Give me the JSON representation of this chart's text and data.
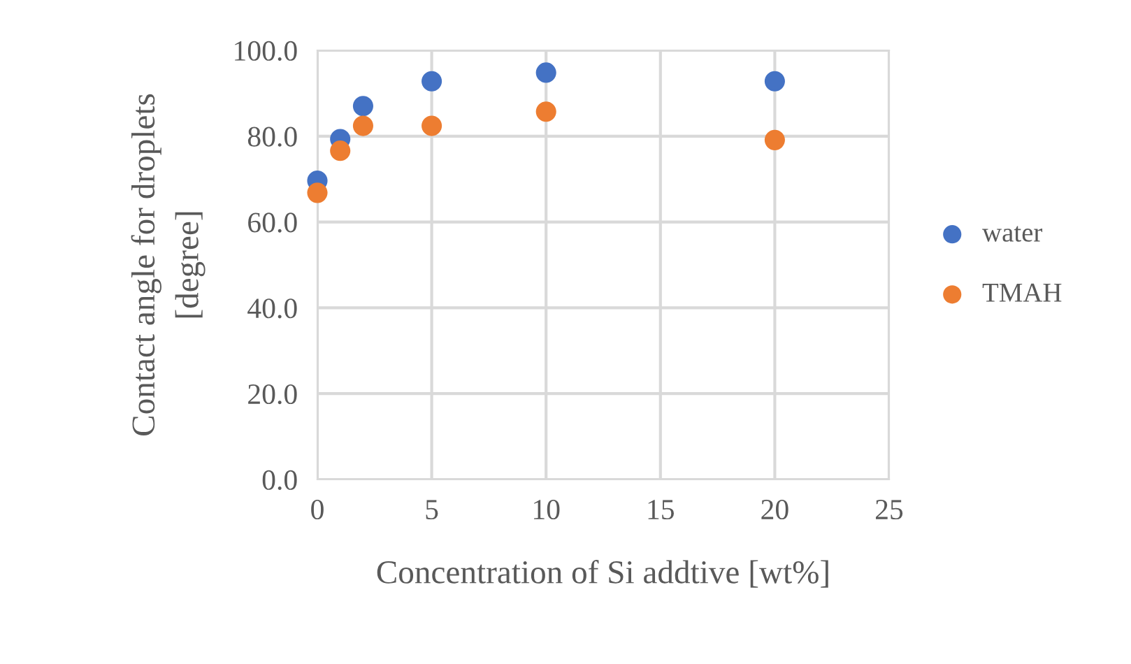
{
  "chart_data": {
    "type": "scatter",
    "xlabel": "Concentration of Si addtive [wt%]",
    "ylabel": "Contact angle for droplets\n[degree]",
    "x": [
      0,
      1,
      2,
      5,
      10,
      20
    ],
    "series": [
      {
        "name": "water",
        "color": "#4472c4",
        "values": [
          69.6,
          79.3,
          87.0,
          92.8,
          94.8,
          92.8
        ]
      },
      {
        "name": "TMAH",
        "color": "#ed7d31",
        "values": [
          66.8,
          76.6,
          82.4,
          82.4,
          85.7,
          79.1
        ]
      }
    ],
    "xlim": [
      0,
      25
    ],
    "xticks": [
      0,
      5,
      10,
      15,
      20,
      25
    ],
    "ylim": [
      0,
      100
    ],
    "yticks": [
      {
        "value": 0,
        "label": "0.0"
      },
      {
        "value": 20,
        "label": "20.0"
      },
      {
        "value": 40,
        "label": "40.0"
      },
      {
        "value": 60,
        "label": "60.0"
      },
      {
        "value": 80,
        "label": "80.0"
      },
      {
        "value": 100,
        "label": "100.0"
      }
    ],
    "grid": true,
    "legend": "right",
    "marker": "circle"
  }
}
